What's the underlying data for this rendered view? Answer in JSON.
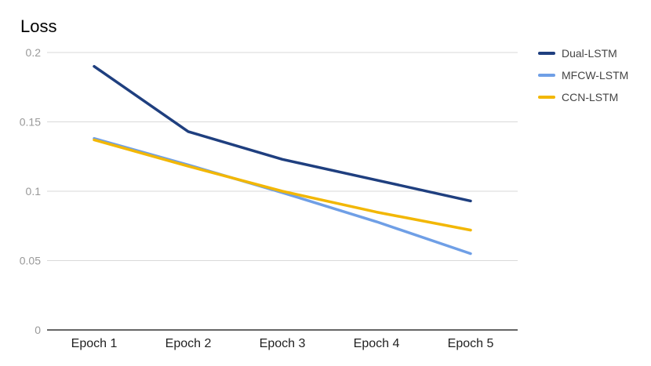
{
  "chart_data": {
    "type": "line",
    "title": "Loss",
    "xlabel": "",
    "ylabel": "",
    "categories": [
      "Epoch 1",
      "Epoch 2",
      "Epoch 3",
      "Epoch 4",
      "Epoch 5"
    ],
    "ylim": [
      0,
      0.2
    ],
    "yticks": [
      0,
      0.05,
      0.1,
      0.15,
      0.2
    ],
    "ytick_labels": [
      "0",
      "0.05",
      "0.1",
      "0.15",
      "0.2"
    ],
    "grid": true,
    "legend_position": "right",
    "series": [
      {
        "name": "Dual-LSTM",
        "color": "#1f3f7f",
        "values": [
          0.19,
          0.143,
          0.123,
          0.108,
          0.093
        ]
      },
      {
        "name": "MFCW-LSTM",
        "color": "#6f9fe6",
        "values": [
          0.138,
          0.119,
          0.099,
          0.078,
          0.055
        ]
      },
      {
        "name": "CCN-LSTM",
        "color": "#f2b705",
        "values": [
          0.137,
          0.118,
          0.1,
          0.085,
          0.072
        ]
      }
    ]
  }
}
